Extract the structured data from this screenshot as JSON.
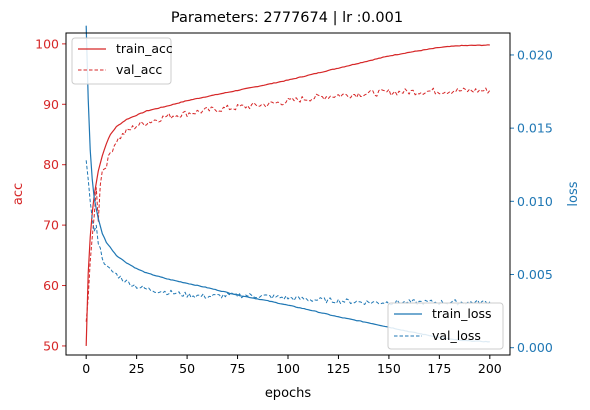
{
  "colors": {
    "acc": "#d62728",
    "loss": "#1f77b4",
    "axis": "#000000"
  },
  "chart_data": {
    "type": "line",
    "title": "Parameters: 2777674 | lr :0.001",
    "xlabel": "epochs",
    "ylabel_left": "acc",
    "ylabel_right": "loss",
    "xlim": [
      -10,
      210
    ],
    "ylim_left": [
      48.5,
      101.8
    ],
    "ylim_right": [
      -0.0005,
      0.0215
    ],
    "x_ticks": [
      0,
      25,
      50,
      75,
      100,
      125,
      150,
      175,
      200
    ],
    "y_ticks_left": [
      50,
      60,
      70,
      80,
      90,
      100
    ],
    "y_ticks_right": [
      0.0,
      0.005,
      0.01,
      0.015,
      0.02
    ],
    "y_tick_labels_right": [
      "0.000",
      "0.005",
      "0.010",
      "0.015",
      "0.020"
    ],
    "legend_left": {
      "placement": "top-left",
      "entries": [
        "train_acc",
        "val_acc"
      ]
    },
    "legend_right": {
      "placement": "lower-right",
      "entries": [
        "train_loss",
        "val_loss"
      ]
    },
    "epochs": 200,
    "series": [
      {
        "name": "train_acc",
        "axis": "left",
        "style": "solid",
        "points": [
          [
            0,
            50
          ],
          [
            1,
            62
          ],
          [
            2,
            68
          ],
          [
            3,
            72
          ],
          [
            4,
            75
          ],
          [
            5,
            77
          ],
          [
            6,
            79
          ],
          [
            8,
            81.5
          ],
          [
            10,
            83.5
          ],
          [
            12,
            85
          ],
          [
            15,
            86.3
          ],
          [
            20,
            87.5
          ],
          [
            25,
            88.2
          ],
          [
            30,
            88.9
          ],
          [
            40,
            89.7
          ],
          [
            50,
            90.6
          ],
          [
            60,
            91.3
          ],
          [
            75,
            92.3
          ],
          [
            90,
            93.3
          ],
          [
            100,
            94
          ],
          [
            110,
            94.8
          ],
          [
            125,
            96
          ],
          [
            140,
            97.2
          ],
          [
            150,
            98
          ],
          [
            160,
            98.6
          ],
          [
            175,
            99.4
          ],
          [
            185,
            99.7
          ],
          [
            200,
            99.8
          ]
        ]
      },
      {
        "name": "val_acc",
        "axis": "left",
        "style": "dashed",
        "points": [
          [
            0,
            54
          ],
          [
            1,
            58
          ],
          [
            2,
            64
          ],
          [
            3,
            68
          ],
          [
            4,
            72
          ],
          [
            5,
            76
          ],
          [
            6,
            71
          ],
          [
            7,
            77
          ],
          [
            8,
            79
          ],
          [
            10,
            80
          ],
          [
            12,
            82
          ],
          [
            15,
            84
          ],
          [
            20,
            85.5
          ],
          [
            25,
            86.5
          ],
          [
            30,
            87
          ],
          [
            40,
            88
          ],
          [
            50,
            88.5
          ],
          [
            60,
            89
          ],
          [
            75,
            89.5
          ],
          [
            90,
            90
          ],
          [
            100,
            90.5
          ],
          [
            110,
            91
          ],
          [
            125,
            91.5
          ],
          [
            140,
            91.8
          ],
          [
            150,
            92
          ],
          [
            175,
            92.2
          ],
          [
            200,
            92.3
          ]
        ]
      },
      {
        "name": "train_loss",
        "axis": "right",
        "style": "solid",
        "points": [
          [
            0,
            0.022
          ],
          [
            1,
            0.017
          ],
          [
            2,
            0.0135
          ],
          [
            3,
            0.0115
          ],
          [
            4,
            0.0102
          ],
          [
            5,
            0.0095
          ],
          [
            6,
            0.0088
          ],
          [
            8,
            0.0078
          ],
          [
            10,
            0.0072
          ],
          [
            15,
            0.0063
          ],
          [
            20,
            0.0058
          ],
          [
            25,
            0.0054
          ],
          [
            30,
            0.0051
          ],
          [
            40,
            0.0047
          ],
          [
            50,
            0.0044
          ],
          [
            60,
            0.0041
          ],
          [
            75,
            0.0036
          ],
          [
            90,
            0.0032
          ],
          [
            100,
            0.0029
          ],
          [
            110,
            0.0026
          ],
          [
            125,
            0.0021
          ],
          [
            140,
            0.0017
          ],
          [
            150,
            0.0014
          ],
          [
            160,
            0.0011
          ],
          [
            175,
            0.0007
          ],
          [
            185,
            0.0005
          ],
          [
            200,
            0.0004
          ]
        ]
      },
      {
        "name": "val_loss",
        "axis": "right",
        "style": "dashed",
        "points": [
          [
            0,
            0.0128
          ],
          [
            1,
            0.0115
          ],
          [
            2,
            0.01
          ],
          [
            3,
            0.0088
          ],
          [
            4,
            0.0078
          ],
          [
            5,
            0.0085
          ],
          [
            6,
            0.0072
          ],
          [
            8,
            0.0062
          ],
          [
            10,
            0.0055
          ],
          [
            15,
            0.005
          ],
          [
            20,
            0.0045
          ],
          [
            25,
            0.0042
          ],
          [
            30,
            0.004
          ],
          [
            40,
            0.0038
          ],
          [
            50,
            0.0036
          ],
          [
            60,
            0.0035
          ],
          [
            75,
            0.0036
          ],
          [
            90,
            0.0035
          ],
          [
            100,
            0.0034
          ],
          [
            110,
            0.0033
          ],
          [
            125,
            0.0032
          ],
          [
            140,
            0.0031
          ],
          [
            150,
            0.0031
          ],
          [
            175,
            0.0031
          ],
          [
            200,
            0.0031
          ]
        ]
      }
    ]
  }
}
